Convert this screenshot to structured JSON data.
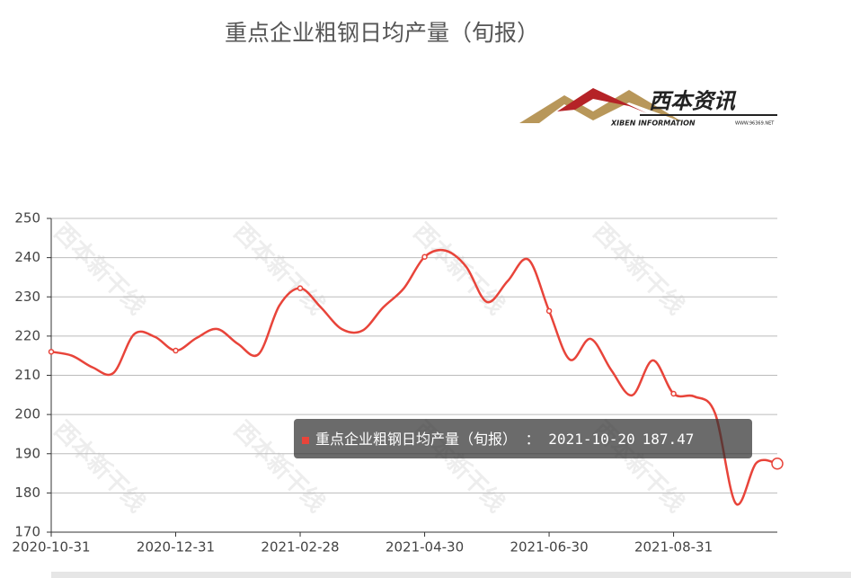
{
  "chart_data": {
    "type": "line",
    "title": "重点企业粗钢日均产量（旬报）",
    "logo": {
      "name": "西本资讯",
      "subtitle": "XIBEN INFORMATION",
      "site": "WWW.96369.NET"
    },
    "watermark": "西本新干线",
    "categories": [
      "2020-10-31",
      null,
      null,
      null,
      null,
      null,
      "2020-12-31",
      null,
      null,
      null,
      null,
      null,
      "2021-02-28",
      null,
      null,
      null,
      null,
      null,
      "2021-04-30",
      null,
      null,
      null,
      null,
      null,
      "2021-06-30",
      null,
      null,
      null,
      null,
      null,
      "2021-08-31",
      null,
      null,
      null,
      null,
      null
    ],
    "series": [
      {
        "name": "重点企业粗钢日均产量（旬报）",
        "color": "#e8443a",
        "values": [
          216,
          215,
          212,
          210.6,
          220.5,
          219.8,
          216.3,
          219.5,
          221.8,
          218,
          215.4,
          227.8,
          232.2,
          227.3,
          221.8,
          221.4,
          227.3,
          232.2,
          240.2,
          241.8,
          237.7,
          228.7,
          234,
          239.5,
          226.4,
          214,
          219.3,
          211.3,
          204.9,
          213.8,
          205.3,
          204.6,
          200.3,
          177.3,
          187.7,
          187.47
        ]
      }
    ],
    "ylim": [
      170,
      250
    ],
    "yticks": [
      170,
      180,
      190,
      200,
      210,
      220,
      230,
      240,
      250
    ],
    "grid": true,
    "tooltip": {
      "date": "2021-10-20",
      "separator": " ： "
    }
  }
}
